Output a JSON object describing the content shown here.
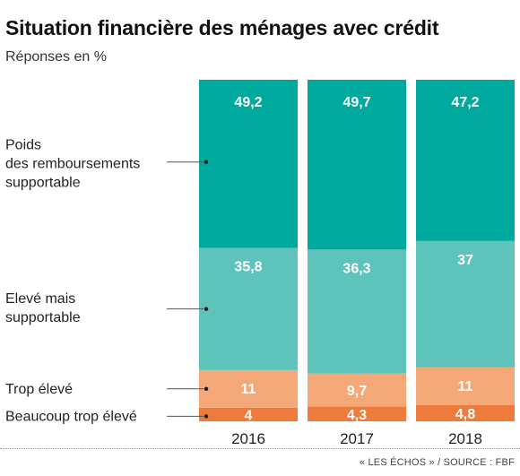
{
  "title": "Situation financière des ménages avec crédit",
  "subtitle": "Réponses en %",
  "source": "« LES ÉCHOS » / SOURCE : FBF",
  "chart_data": {
    "type": "bar",
    "stacked": true,
    "categories": [
      "2016",
      "2017",
      "2018"
    ],
    "series": [
      {
        "name": "Beaucoup trop élevé",
        "values": [
          4,
          4.3,
          4.8
        ],
        "labels": [
          "4",
          "4,3",
          "4,8"
        ],
        "color": "#ee7a3b"
      },
      {
        "name": "Trop élevé",
        "values": [
          11,
          9.7,
          11
        ],
        "labels": [
          "11",
          "9,7",
          "11"
        ],
        "color": "#f4a777"
      },
      {
        "name": "Elevé mais supportable",
        "values": [
          35.8,
          36.3,
          37
        ],
        "labels": [
          "35,8",
          "36,3",
          "37"
        ],
        "color": "#5ec4bb"
      },
      {
        "name": "Poids des remboursements supportable",
        "values": [
          49.2,
          49.7,
          47.2
        ],
        "labels": [
          "49,2",
          "49,7",
          "47,2"
        ],
        "color": "#00a99d"
      }
    ],
    "legend_lines": [
      [
        "Beaucoup trop élevé"
      ],
      [
        "Trop élevé"
      ],
      [
        "Elevé mais",
        "supportable"
      ],
      [
        "Poids",
        "des remboursements",
        "supportable"
      ]
    ],
    "ylim": [
      0,
      100
    ],
    "grid": false
  }
}
